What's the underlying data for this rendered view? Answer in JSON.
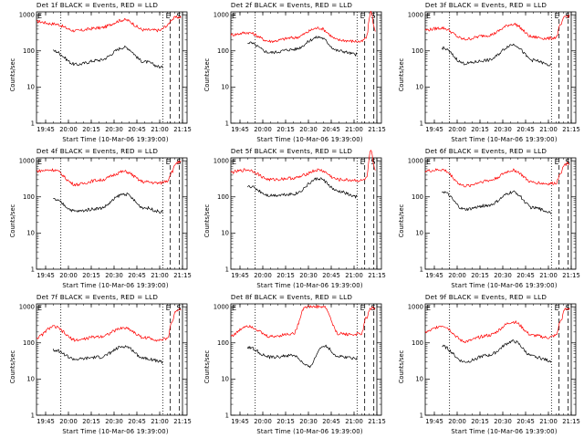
{
  "figure": {
    "ylabel": "Counts/sec",
    "xlabel": "Start Time (10-Mar-06 19:39:00)",
    "x_tick_labels": [
      "19:45",
      "20:00",
      "20:15",
      "20:30",
      "20:45",
      "21:00",
      "21:15"
    ],
    "y_tick_labels": [
      "1",
      "10",
      "100",
      "1000"
    ],
    "markers": [
      "E",
      "S"
    ],
    "colors": {
      "events": "#000000",
      "lld": "#ff0000"
    }
  },
  "chart_data": [
    {
      "type": "line",
      "title": "Det 1f BLACK = Events, RED = LLD",
      "ylog": true,
      "ylim": [
        1,
        1200
      ],
      "series": [
        {
          "name": "LLD",
          "color": "#ff0000",
          "x": [
            "19:39",
            "19:50",
            "20:05",
            "20:20",
            "20:37",
            "20:50",
            "21:00",
            "21:05",
            "21:08",
            "21:11",
            "21:14"
          ],
          "values": [
            650,
            560,
            360,
            430,
            720,
            380,
            370,
            500,
            750,
            850,
            870
          ]
        },
        {
          "name": "Events",
          "color": "#000000",
          "x": [
            "19:50",
            "20:05",
            "20:20",
            "20:37",
            "20:50",
            "21:02"
          ],
          "values": [
            100,
            42,
            55,
            125,
            50,
            35
          ]
        }
      ]
    },
    {
      "type": "line",
      "title": "Det 2f BLACK = Events, RED = LLD",
      "ylog": true,
      "ylim": [
        1,
        1200
      ],
      "series": [
        {
          "name": "LLD",
          "color": "#ff0000",
          "x": [
            "19:39",
            "19:50",
            "20:05",
            "20:20",
            "20:37",
            "20:50",
            "21:00",
            "21:05",
            "21:08",
            "21:11",
            "21:14"
          ],
          "values": [
            280,
            320,
            185,
            230,
            430,
            200,
            185,
            180,
            230,
            1200,
            350
          ]
        },
        {
          "name": "Events",
          "color": "#000000",
          "x": [
            "19:50",
            "20:05",
            "20:20",
            "20:37",
            "20:50",
            "21:02"
          ],
          "values": [
            170,
            90,
            110,
            240,
            100,
            80
          ]
        }
      ]
    },
    {
      "type": "line",
      "title": "Det 3f BLACK = Events, RED = LLD",
      "ylog": true,
      "ylim": [
        1,
        1200
      ],
      "series": [
        {
          "name": "LLD",
          "color": "#ff0000",
          "x": [
            "19:39",
            "19:50",
            "20:05",
            "20:20",
            "20:37",
            "20:50",
            "21:00",
            "21:05",
            "21:08",
            "21:11",
            "21:14"
          ],
          "values": [
            380,
            430,
            210,
            270,
            550,
            240,
            220,
            235,
            520,
            900,
            930
          ]
        },
        {
          "name": "Events",
          "color": "#000000",
          "x": [
            "19:50",
            "20:05",
            "20:20",
            "20:37",
            "20:50",
            "21:02"
          ],
          "values": [
            120,
            45,
            55,
            150,
            55,
            40
          ]
        }
      ]
    },
    {
      "type": "line",
      "title": "Det 4f BLACK = Events, RED = LLD",
      "ylog": true,
      "ylim": [
        1,
        1200
      ],
      "series": [
        {
          "name": "LLD",
          "color": "#ff0000",
          "x": [
            "19:39",
            "19:50",
            "20:05",
            "20:20",
            "20:37",
            "20:50",
            "21:00",
            "21:05",
            "21:08",
            "21:11",
            "21:14"
          ],
          "values": [
            520,
            560,
            220,
            290,
            500,
            260,
            240,
            280,
            500,
            880,
            900
          ]
        },
        {
          "name": "Events",
          "color": "#000000",
          "x": [
            "19:50",
            "20:05",
            "20:20",
            "20:37",
            "20:50",
            "21:02"
          ],
          "values": [
            85,
            40,
            48,
            120,
            50,
            38
          ]
        }
      ]
    },
    {
      "type": "line",
      "title": "Det 5f BLACK = Events, RED = LLD",
      "ylog": true,
      "ylim": [
        1,
        1200
      ],
      "series": [
        {
          "name": "LLD",
          "color": "#ff0000",
          "x": [
            "19:39",
            "19:50",
            "20:05",
            "20:20",
            "20:37",
            "20:50",
            "21:00",
            "21:05",
            "21:08",
            "21:11",
            "21:14"
          ],
          "values": [
            480,
            560,
            300,
            330,
            550,
            300,
            290,
            280,
            320,
            1800,
            500
          ]
        },
        {
          "name": "Events",
          "color": "#000000",
          "x": [
            "19:50",
            "20:05",
            "20:20",
            "20:37",
            "20:50",
            "21:02"
          ],
          "values": [
            200,
            110,
            120,
            320,
            140,
            100
          ]
        }
      ]
    },
    {
      "type": "line",
      "title": "Det 6f BLACK = Events, RED = LLD",
      "ylog": true,
      "ylim": [
        1,
        1200
      ],
      "series": [
        {
          "name": "LLD",
          "color": "#ff0000",
          "x": [
            "19:39",
            "19:50",
            "20:05",
            "20:20",
            "20:37",
            "20:50",
            "21:00",
            "21:05",
            "21:08",
            "21:11",
            "21:14"
          ],
          "values": [
            520,
            560,
            200,
            280,
            540,
            250,
            230,
            240,
            480,
            800,
            880
          ]
        },
        {
          "name": "Events",
          "color": "#000000",
          "x": [
            "19:50",
            "20:05",
            "20:20",
            "20:37",
            "20:50",
            "21:02"
          ],
          "values": [
            140,
            45,
            58,
            135,
            50,
            38
          ]
        }
      ]
    },
    {
      "type": "line",
      "title": "Det 7f BLACK = Events, RED = LLD",
      "ylog": true,
      "ylim": [
        1,
        1200
      ],
      "series": [
        {
          "name": "LLD",
          "color": "#ff0000",
          "x": [
            "19:39",
            "19:50",
            "20:05",
            "20:20",
            "20:37",
            "20:50",
            "21:00",
            "21:05",
            "21:08",
            "21:11",
            "21:14"
          ],
          "values": [
            140,
            280,
            120,
            150,
            260,
            140,
            120,
            130,
            380,
            800,
            900
          ]
        },
        {
          "name": "Events",
          "color": "#000000",
          "x": [
            "19:50",
            "20:05",
            "20:20",
            "20:37",
            "20:50",
            "21:02"
          ],
          "values": [
            65,
            35,
            40,
            80,
            38,
            30
          ]
        }
      ]
    },
    {
      "type": "line",
      "title": "Det 8f BLACK = Events, RED = LLD",
      "ylog": true,
      "ylim": [
        1,
        1200
      ],
      "series": [
        {
          "name": "LLD",
          "color": "#ff0000",
          "x": [
            "19:39",
            "19:50",
            "20:05",
            "20:20",
            "20:28",
            "20:34",
            "20:40",
            "20:50",
            "21:00",
            "21:05",
            "21:08",
            "21:11",
            "21:14"
          ],
          "values": [
            160,
            300,
            150,
            180,
            1000,
            1000,
            1000,
            180,
            170,
            180,
            500,
            900,
            950
          ]
        },
        {
          "name": "Events",
          "color": "#000000",
          "x": [
            "19:50",
            "20:05",
            "20:20",
            "20:30",
            "20:40",
            "20:50",
            "21:02"
          ],
          "values": [
            75,
            40,
            45,
            22,
            85,
            42,
            38
          ]
        }
      ]
    },
    {
      "type": "line",
      "title": "Det 9f BLACK = Events, RED = LLD",
      "ylog": true,
      "ylim": [
        1,
        1200
      ],
      "series": [
        {
          "name": "LLD",
          "color": "#ff0000",
          "x": [
            "19:39",
            "19:50",
            "20:05",
            "20:20",
            "20:37",
            "20:50",
            "21:00",
            "21:05",
            "21:08",
            "21:11",
            "21:14"
          ],
          "values": [
            200,
            300,
            110,
            160,
            380,
            160,
            140,
            160,
            400,
            850,
            900
          ]
        },
        {
          "name": "Events",
          "color": "#000000",
          "x": [
            "19:50",
            "20:05",
            "20:20",
            "20:37",
            "20:50",
            "21:02"
          ],
          "values": [
            80,
            30,
            45,
            110,
            42,
            32
          ]
        }
      ]
    }
  ]
}
